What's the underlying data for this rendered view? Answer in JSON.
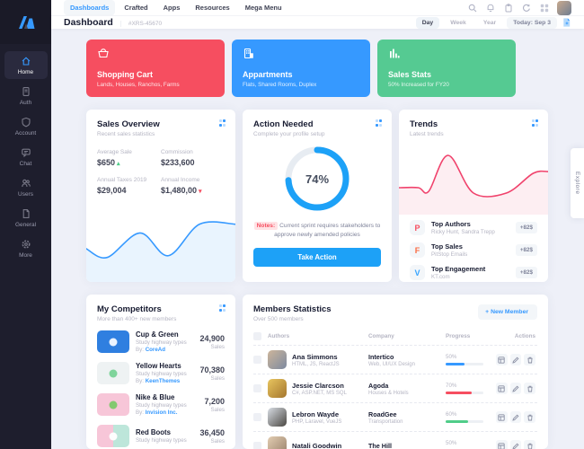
{
  "topbar": {
    "nav": [
      {
        "label": "Dashboards",
        "active": true
      },
      {
        "label": "Crafted",
        "active": false
      },
      {
        "label": "Apps",
        "active": false
      },
      {
        "label": "Resources",
        "active": false
      },
      {
        "label": "Mega Menu",
        "active": false
      }
    ],
    "icons": [
      "search-icon",
      "notifications-bell-icon",
      "tasks-clipboard-icon",
      "refresh-icon",
      "quick-panel-grid-icon",
      "user-avatar"
    ]
  },
  "subheader": {
    "title": "Dashboard",
    "code": "#XRS-45670",
    "range_tabs": [
      {
        "label": "Day",
        "active": true
      },
      {
        "label": "Week",
        "active": false
      },
      {
        "label": "Year",
        "active": false
      }
    ],
    "today": "Today: Sep 3"
  },
  "sidebar": {
    "items": [
      {
        "label": "Home",
        "active": true
      },
      {
        "label": "Auth",
        "active": false
      },
      {
        "label": "Account",
        "active": false
      },
      {
        "label": "Chat",
        "active": false
      },
      {
        "label": "Users",
        "active": false
      },
      {
        "label": "General",
        "active": false
      },
      {
        "label": "More",
        "active": false
      }
    ]
  },
  "stat_cards": [
    {
      "title": "Shopping Cart",
      "subtitle": "Lands, Houses, Ranchos, Farms",
      "color": "#f64e60",
      "icon": "cart-icon"
    },
    {
      "title": "Appartments",
      "subtitle": "Flats, Shared Rooms, Duplex",
      "color": "#3699ff",
      "icon": "building-icon"
    },
    {
      "title": "Sales Stats",
      "subtitle": "50% Increased for FY20",
      "color": "#55ca92",
      "icon": "bar-chart-icon"
    }
  ],
  "sales_overview": {
    "title": "Sales Overview",
    "subtitle": "Recent sales statistics",
    "stats": [
      {
        "label": "Average Sale",
        "value": "$650",
        "trend": "up"
      },
      {
        "label": "Commission",
        "value": "$233,600",
        "trend": "none"
      },
      {
        "label": "Annual Taxes 2019",
        "value": "$29,004",
        "trend": "none"
      },
      {
        "label": "Annual Income",
        "value": "$1,480,00",
        "trend": "down"
      }
    ],
    "spark": [
      [
        0,
        21
      ],
      [
        14,
        26
      ],
      [
        36,
        12
      ],
      [
        55,
        25
      ],
      [
        76,
        7
      ],
      [
        100,
        7
      ]
    ],
    "line_color": "#3699ff",
    "fill_color": "#e9f4fe"
  },
  "action_needed": {
    "title": "Action Needed",
    "subtitle": "Complete your profile setup",
    "pct": 74,
    "pct_label": "74%",
    "donut_color": "#1da1f7",
    "notes_label": "Notes:",
    "notes_text": "Current sprint requires stakeholders to approve newly amended policies",
    "button": "Take Action"
  },
  "trends": {
    "title": "Trends",
    "subtitle": "Latest trends",
    "spark": [
      [
        0,
        25
      ],
      [
        13,
        25
      ],
      [
        20,
        27
      ],
      [
        33,
        7
      ],
      [
        50,
        28
      ],
      [
        72,
        28
      ],
      [
        90,
        17
      ],
      [
        100,
        16
      ]
    ],
    "line_color": "#f0426c",
    "fill_color": "#fdeef2",
    "items": [
      {
        "title": "Top Authors",
        "subtitle": "Ricky Hunt, Sandra Trepp",
        "badge": "+82$",
        "letter": "P",
        "letter_color": "#f64e60",
        "icon": "p-logo-icon"
      },
      {
        "title": "Top Sales",
        "subtitle": "PitStop Emails",
        "badge": "+82$",
        "letter": "F",
        "letter_color": "#fa6b42",
        "icon": "f-logo-icon"
      },
      {
        "title": "Top Engagement",
        "subtitle": "KT.com",
        "badge": "+82$",
        "letter": "V",
        "letter_color": "#34a3ff",
        "icon": "v-logo-icon"
      }
    ]
  },
  "competitors": {
    "title": "My Competitors",
    "subtitle": "More than 400+ new members",
    "items": [
      {
        "name": "Cup & Green",
        "desc": "Study highway types",
        "by_label": "By:",
        "by": "CoreAd",
        "value": "24,900",
        "unit": "Sales"
      },
      {
        "name": "Yellow Hearts",
        "desc": "Study highway types",
        "by_label": "By:",
        "by": "KeenThemes",
        "value": "70,380",
        "unit": "Sales"
      },
      {
        "name": "Nike & Blue",
        "desc": "Study highway types",
        "by_label": "By:",
        "by": "Invision Inc.",
        "value": "7,200",
        "unit": "Sales"
      },
      {
        "name": "Red Boots",
        "desc": "Study highway types",
        "by_label": "",
        "by": "",
        "value": "36,450",
        "unit": "Sales"
      }
    ]
  },
  "members": {
    "title": "Members Statistics",
    "subtitle": "Over 500 members",
    "new_member_plus": "+",
    "new_member_button": "New Member",
    "columns": {
      "authors": "Authors",
      "company": "Company",
      "progress": "Progress",
      "actions": "Actions"
    },
    "rows": [
      {
        "name": "Ana Simmons",
        "skills": "HTML, JS, ReactJS",
        "company": "Intertico",
        "industry": "Web, UI/UX Design",
        "progress": "50%",
        "pct": 50,
        "color": "#3699ff"
      },
      {
        "name": "Jessie Clarcson",
        "skills": "C#, ASP.NET, MS SQL",
        "company": "Agoda",
        "industry": "Houses & Hotels",
        "progress": "70%",
        "pct": 70,
        "color": "#f64e60"
      },
      {
        "name": "Lebron Wayde",
        "skills": "PHP, Laravel, VueJS",
        "company": "RoadGee",
        "industry": "Transportation",
        "progress": "60%",
        "pct": 60,
        "color": "#50cd89"
      },
      {
        "name": "Natali Goodwin",
        "skills": "",
        "company": "The Hill",
        "industry": "",
        "progress": "50%",
        "pct": 50,
        "color": "#3699ff"
      }
    ]
  },
  "explore_label": "Explore"
}
